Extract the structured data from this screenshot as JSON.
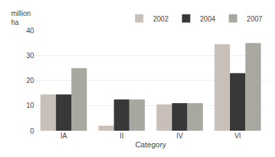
{
  "chart_data": {
    "type": "bar",
    "categories": [
      "IA",
      "II",
      "IV",
      "VI"
    ],
    "series": [
      {
        "name": "2002",
        "color": "#c8c0b8",
        "values": [
          14.5,
          2.0,
          10.5,
          34.5
        ]
      },
      {
        "name": "2004",
        "color": "#383838",
        "values": [
          14.5,
          12.5,
          11.0,
          23.0
        ]
      },
      {
        "name": "2007",
        "color": "#a8a8a0",
        "values": [
          25.0,
          12.5,
          11.0,
          35.0
        ]
      }
    ],
    "xlabel": "Category",
    "ylabel": "million\nha",
    "ylim": [
      0,
      40
    ],
    "yticks": [
      0,
      10,
      20,
      30,
      40
    ],
    "grid": true,
    "legend": "upper right"
  }
}
